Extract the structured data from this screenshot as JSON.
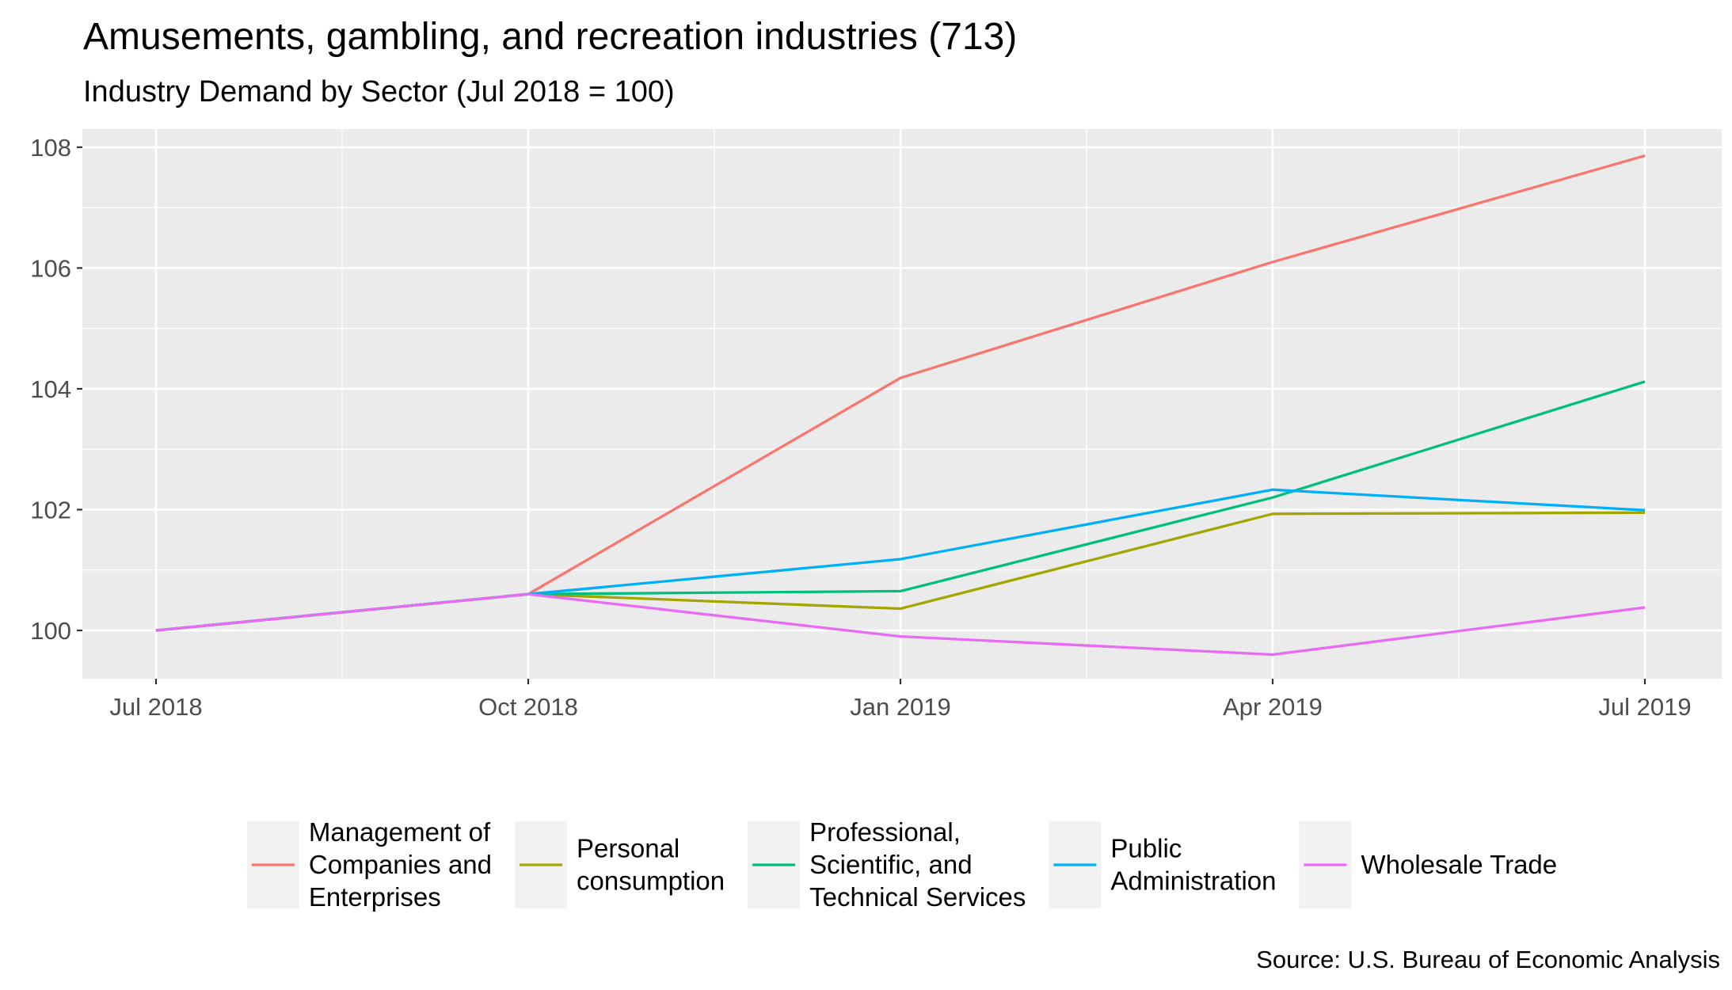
{
  "chart_data": {
    "type": "line",
    "title": "Amusements, gambling, and recreation industries (713)",
    "subtitle": "Industry Demand by Sector (Jul 2018 = 100)",
    "caption": "Source: U.S. Bureau of Economic Analysis",
    "xlabel": "",
    "ylabel": "",
    "x": [
      "Jul 2018",
      "Oct 2018",
      "Jan 2019",
      "Apr 2019",
      "Jul 2019"
    ],
    "ylim": [
      99.2,
      108.3
    ],
    "yticks": [
      100,
      102,
      104,
      106,
      108
    ],
    "grid": true,
    "legend_position": "bottom",
    "series": [
      {
        "name": "Management of Companies and Enterprises",
        "label_lines": [
          "Management of",
          "Companies and",
          "Enterprises"
        ],
        "color": "#F8766D",
        "values": [
          100,
          100.6,
          104.18,
          106.1,
          107.86
        ]
      },
      {
        "name": "Personal consumption",
        "label_lines": [
          "Personal",
          "consumption"
        ],
        "color": "#A3A500",
        "values": [
          100,
          100.6,
          100.36,
          101.93,
          101.95
        ]
      },
      {
        "name": "Professional, Scientific, and Technical Services",
        "label_lines": [
          "Professional,",
          "Scientific, and",
          "Technical Services"
        ],
        "color": "#00BF7D",
        "values": [
          100,
          100.6,
          100.65,
          102.2,
          104.12
        ]
      },
      {
        "name": "Public Administration",
        "label_lines": [
          "Public",
          "Administration"
        ],
        "color": "#00B0F6",
        "values": [
          100,
          100.6,
          101.18,
          102.33,
          101.99
        ]
      },
      {
        "name": "Wholesale Trade",
        "label_lines": [
          "Wholesale Trade"
        ],
        "color": "#E76BF3",
        "values": [
          100,
          100.6,
          99.9,
          99.6,
          100.38
        ]
      }
    ]
  }
}
